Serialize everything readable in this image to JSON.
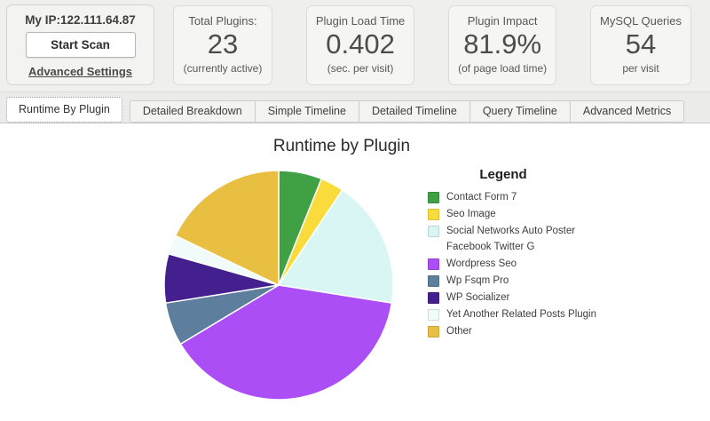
{
  "header": {
    "my_ip": "My IP:122.111.64.87",
    "start_scan_label": "Start Scan",
    "advanced_settings_label": "Advanced Settings",
    "stats": [
      {
        "title": "Total Plugins:",
        "value": "23",
        "subtitle": "(currently active)"
      },
      {
        "title": "Plugin Load Time",
        "value": "0.402",
        "subtitle": "(sec. per visit)"
      },
      {
        "title": "Plugin Impact",
        "value": "81.9%",
        "subtitle": "(of page load time)"
      },
      {
        "title": "MySQL Queries",
        "value": "54",
        "subtitle": "per visit"
      }
    ]
  },
  "tabs": [
    {
      "label": "Runtime By Plugin",
      "active": true
    },
    {
      "label": "Detailed Breakdown",
      "active": false
    },
    {
      "label": "Simple Timeline",
      "active": false
    },
    {
      "label": "Detailed Timeline",
      "active": false
    },
    {
      "label": "Query Timeline",
      "active": false
    },
    {
      "label": "Advanced Metrics",
      "active": false
    }
  ],
  "chart_data": {
    "type": "pie",
    "title": "Runtime by Plugin",
    "legend_title": "Legend",
    "legend_position": "right",
    "start_angle_deg": 0,
    "direction": "clockwise",
    "values_are": "percent of total plugin runtime (estimated from slice angles)",
    "slices": [
      {
        "label": "Contact Form 7",
        "value": 6.1,
        "color": "#3fa044"
      },
      {
        "label": "Seo Image",
        "value": 3.3,
        "color": "#f9dc3c"
      },
      {
        "label": "Social Networks Auto Poster Facebook Twitter G",
        "legend_lines": [
          "Social Networks Auto Poster",
          "Facebook Twitter G"
        ],
        "value": 18.1,
        "color": "#d9f6f5"
      },
      {
        "label": "Wordpress Seo",
        "value": 38.9,
        "color": "#ab4ef5"
      },
      {
        "label": "Wp Fsqm Pro",
        "value": 6.1,
        "color": "#5d7f9d"
      },
      {
        "label": "WP Socializer",
        "value": 6.9,
        "color": "#44208f"
      },
      {
        "label": "Yet Another Related Posts Plugin",
        "value": 2.7,
        "color": "#f0fbfa"
      },
      {
        "label": "Other",
        "value": 17.9,
        "color": "#e9bf41"
      }
    ]
  }
}
